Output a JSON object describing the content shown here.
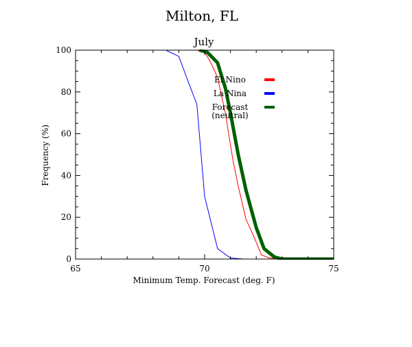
{
  "chart_data": {
    "type": "line",
    "title": "Milton, FL",
    "subtitle": "July",
    "xlabel": "Minimum Temp. Forecast (deg. F)",
    "ylabel": "Frequency (%)",
    "xlim": [
      65,
      75
    ],
    "ylim": [
      0,
      100
    ],
    "x_ticks": [
      65,
      70,
      75
    ],
    "y_ticks": [
      0,
      20,
      40,
      60,
      80,
      100
    ],
    "grid": false,
    "legend_placement": "upper-right-inside",
    "series": [
      {
        "name": "El Nino",
        "color": "#ff0000",
        "stroke": "thin",
        "x": [
          69.7,
          70.0,
          70.2,
          70.5,
          70.8,
          71.1,
          71.3,
          71.6,
          71.9,
          72.2,
          72.5,
          73.0,
          75.0
        ],
        "y": [
          100,
          99,
          95,
          87,
          70,
          47,
          35,
          19,
          11,
          2,
          0.5,
          0,
          0
        ]
      },
      {
        "name": "La Nina",
        "color": "#0000ff",
        "stroke": "thin",
        "x": [
          68.5,
          69.0,
          69.3,
          69.7,
          70.0,
          70.5,
          71.0,
          71.5,
          75.0
        ],
        "y": [
          100,
          97,
          87,
          74,
          30,
          5,
          0.5,
          0,
          0
        ]
      },
      {
        "name": "Forecast (neutral)",
        "color": "#006000",
        "stroke": "thick",
        "x": [
          69.8,
          70.1,
          70.5,
          70.8,
          71.0,
          71.3,
          71.6,
          72.0,
          72.3,
          72.7,
          73.0,
          75.0
        ],
        "y": [
          100,
          99,
          94,
          82,
          70,
          50,
          33,
          15,
          5,
          1,
          0,
          0
        ]
      }
    ],
    "legend": [
      {
        "label": "El Nino",
        "color": "#ff0000"
      },
      {
        "label": "La Nina",
        "color": "#0000ff"
      },
      {
        "label": "Forecast",
        "label2": "(neutral)",
        "color": "#006000"
      }
    ]
  }
}
